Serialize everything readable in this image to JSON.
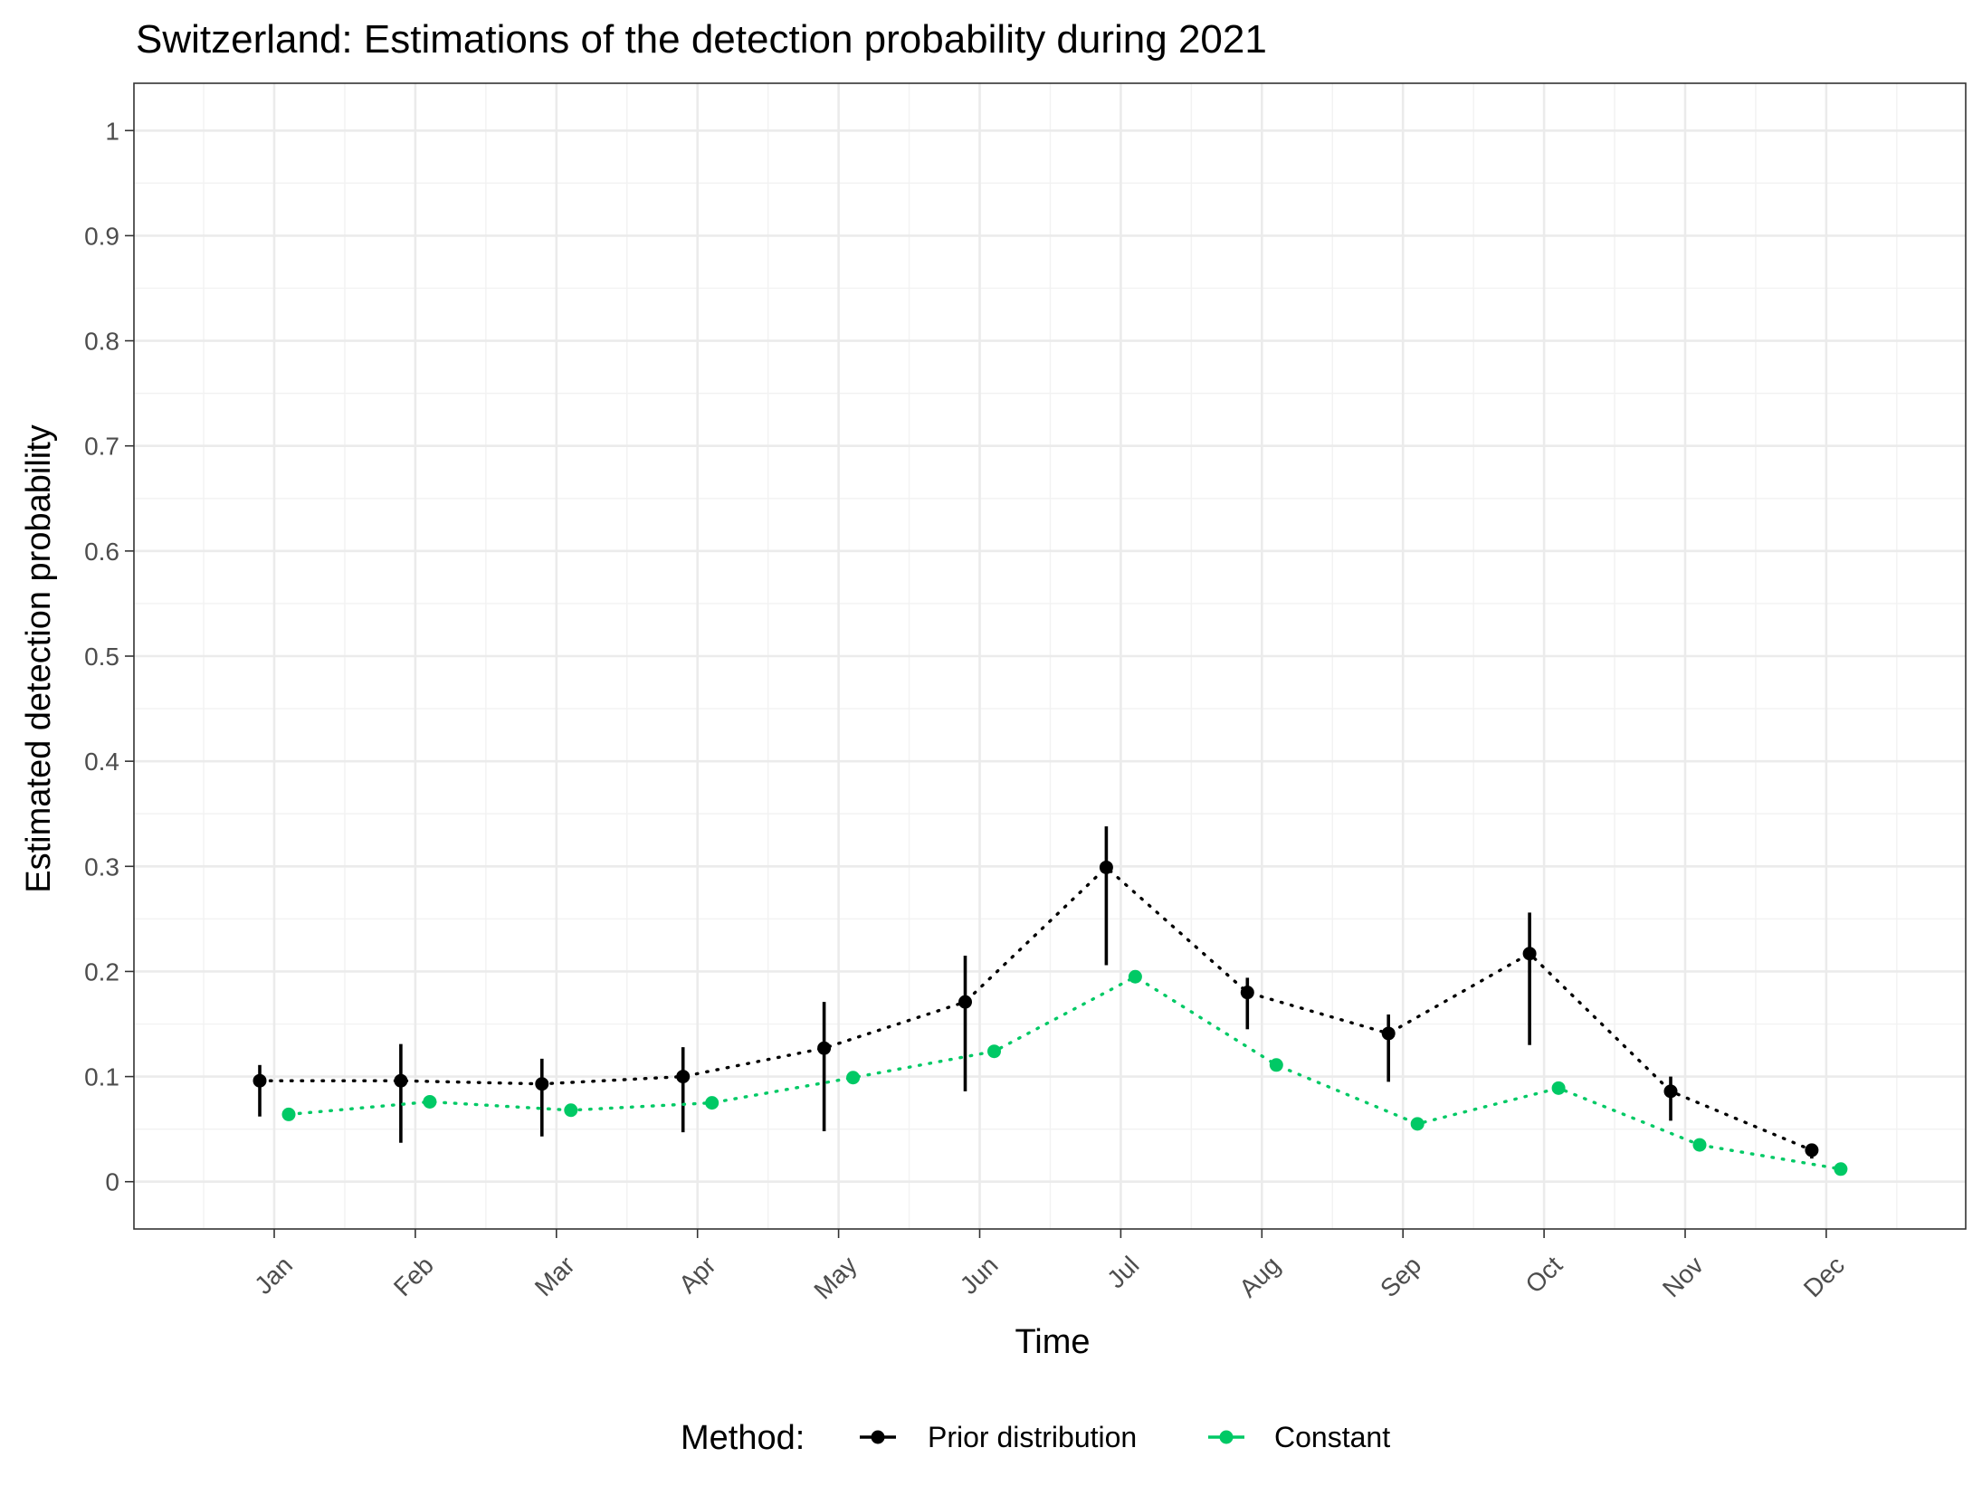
{
  "chart_data": {
    "type": "line",
    "title": "Switzerland: Estimations of the detection probability during 2021",
    "xlabel": "Time",
    "ylabel": "Estimated detection probability",
    "categories": [
      "Jan",
      "Feb",
      "Mar",
      "Apr",
      "May",
      "Jun",
      "Jul",
      "Aug",
      "Sep",
      "Oct",
      "Nov",
      "Dec"
    ],
    "yticks": [
      "0",
      "0.1",
      "0.2",
      "0.3",
      "0.4",
      "0.5",
      "0.6",
      "0.7",
      "0.8",
      "0.9",
      "1"
    ],
    "ylim": [
      -0.045,
      1.045
    ],
    "grid": true,
    "legend": {
      "title": "Method:",
      "position": "bottom"
    },
    "series": [
      {
        "name": "Prior distribution",
        "color": "#000000",
        "line_style": "dotted",
        "values": [
          0.096,
          0.096,
          0.093,
          0.1,
          0.127,
          0.171,
          0.299,
          0.18,
          0.141,
          0.217,
          0.086,
          0.03
        ],
        "lower": [
          0.062,
          0.037,
          0.043,
          0.047,
          0.048,
          0.086,
          0.206,
          0.145,
          0.095,
          0.13,
          0.058,
          0.022
        ],
        "upper": [
          0.111,
          0.131,
          0.117,
          0.128,
          0.171,
          0.215,
          0.338,
          0.194,
          0.159,
          0.256,
          0.1,
          0.035
        ]
      },
      {
        "name": "Constant",
        "color": "#00c965",
        "line_style": "dotted",
        "values": [
          0.064,
          0.076,
          0.068,
          0.075,
          0.099,
          0.124,
          0.195,
          0.111,
          0.055,
          0.089,
          0.035,
          0.012
        ]
      }
    ]
  }
}
